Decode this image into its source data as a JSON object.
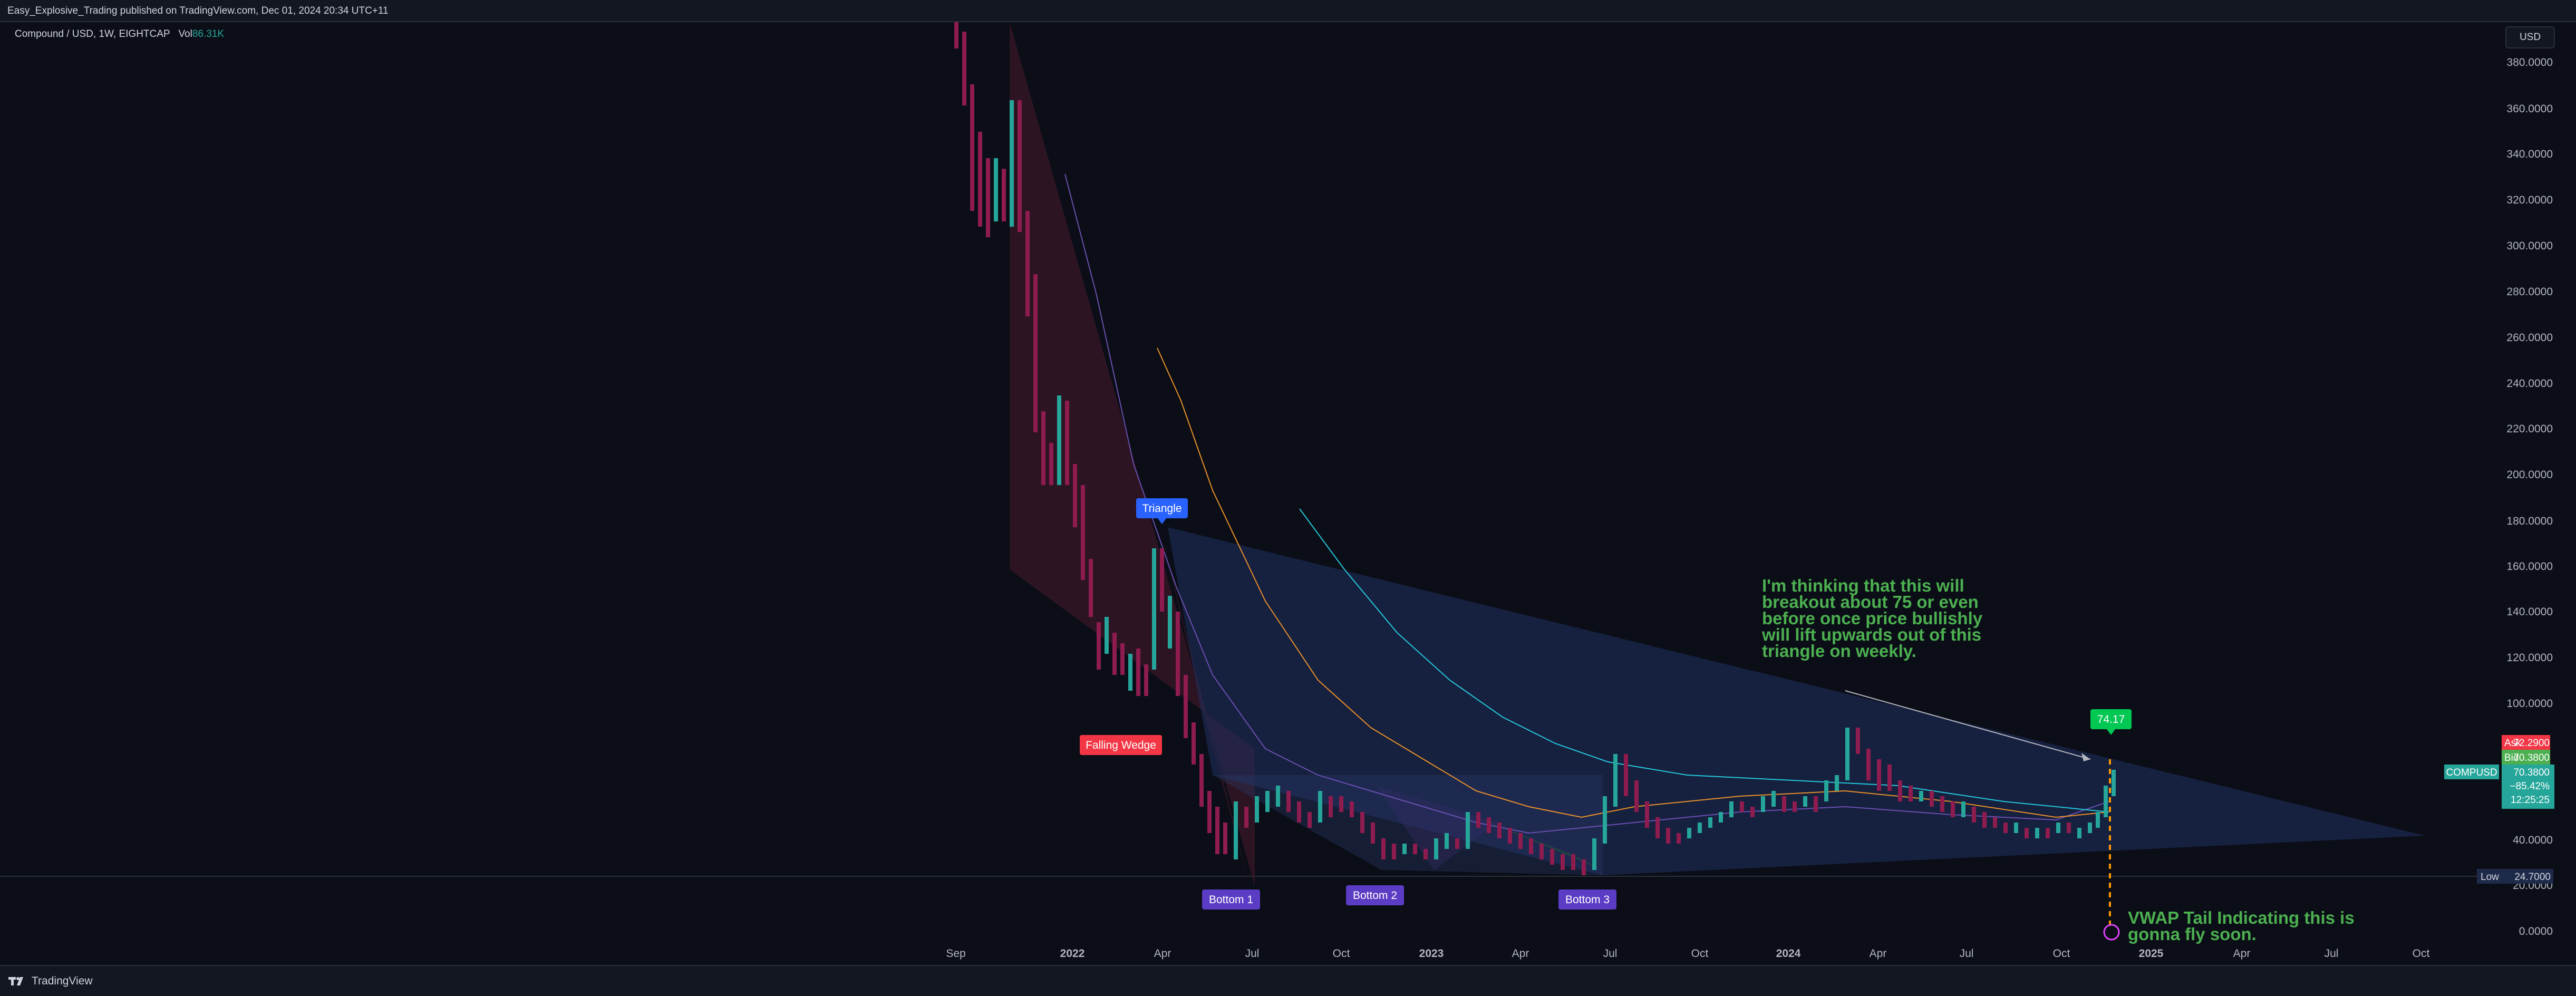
{
  "header": {
    "published_line": "Easy_Explosive_Trading published on TradingView.com, Dec 01, 2024 20:34 UTC+11"
  },
  "legend": {
    "symbol_line": "Compound / USD, 1W, EIGHTCAP",
    "vol_label": "Vol",
    "vol_value": "86.31K"
  },
  "currency_button": "USD",
  "price_axis_labels": [
    "380.0000",
    "360.0000",
    "340.0000",
    "320.0000",
    "300.0000",
    "280.0000",
    "260.0000",
    "240.0000",
    "220.0000",
    "200.0000",
    "180.0000",
    "160.0000",
    "140.0000",
    "120.0000",
    "100.0000",
    "40.0000",
    "20.0000",
    "0.0000"
  ],
  "price_tags": {
    "ask_label": "Ask",
    "ask_value": "72.2900",
    "bid_label": "Bid",
    "bid_value": "70.3800",
    "symbol_label": "COMPUSD",
    "last_value": "70.3800",
    "change_value": "−85.42%",
    "countdown": "12:25:25",
    "low_label": "Low",
    "low_value": "24.7000"
  },
  "time_axis_labels": [
    "Sep",
    "2022",
    "Apr",
    "Jul",
    "Oct",
    "2023",
    "Apr",
    "Jul",
    "Oct",
    "2024",
    "Apr",
    "Jul",
    "Oct",
    "2025",
    "Apr",
    "Jul",
    "Oct"
  ],
  "labels": {
    "triangle": "Triangle",
    "falling_wedge": "Falling Wedge",
    "bottom1": "Bottom 1",
    "bottom2": "Bottom 2",
    "bottom3": "Bottom 3",
    "target_price": "74.17"
  },
  "annotations": {
    "breakout_note": "I'm thinking that this will breakout about 75 or even before once price bullishly will lift upwards out of this triangle  on weekly.",
    "vwap_note": "VWAP Tail Indicating this is gonna fly soon."
  },
  "footer": {
    "brand": "TradingView"
  },
  "colors": {
    "background": "#0b0e17",
    "bull": "#26a69a",
    "bear": "#8e1c4f",
    "triangle_fill": "#1e2d5a",
    "wedge_fill": "#4a1a2e",
    "label_blue": "#2962ff",
    "label_red": "#f23645",
    "label_purple": "#5b3cc4",
    "note_green": "#4caf50"
  }
}
